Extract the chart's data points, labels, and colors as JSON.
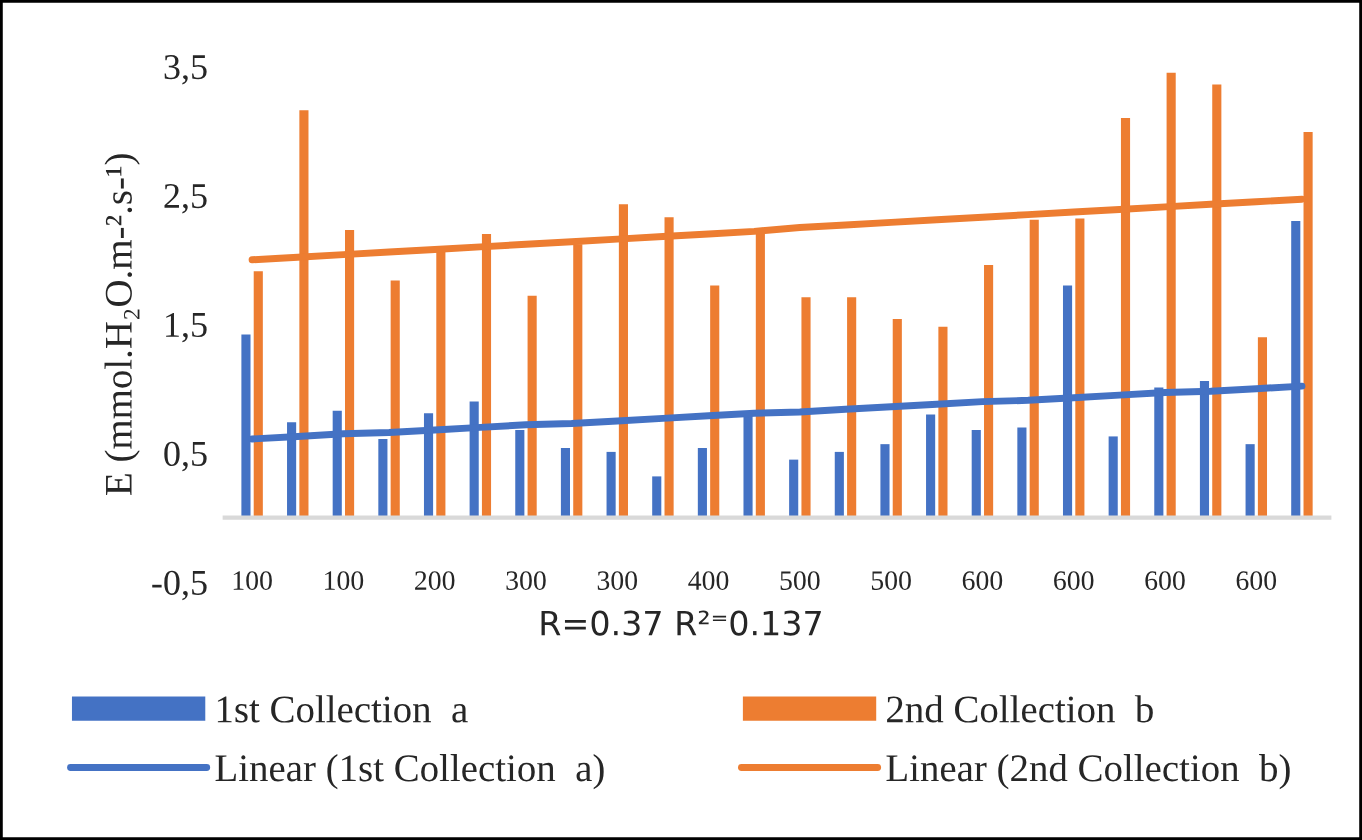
{
  "chart_data": {
    "type": "bar",
    "ylabel": "E (mmol.H₂O.m-².s-¹)",
    "annotations": [
      "R=0.37 R²⁼0.137"
    ],
    "categories": [
      "100",
      null,
      "100",
      null,
      "200",
      null,
      "300",
      null,
      "300",
      null,
      "400",
      null,
      "500",
      null,
      "500",
      null,
      "600",
      null,
      "600",
      null,
      "600",
      null,
      "600",
      null
    ],
    "series": [
      {
        "name": "1st Collection  a",
        "color": "#4472c4",
        "values": [
          1.42,
          0.74,
          0.83,
          0.61,
          0.81,
          0.9,
          0.68,
          0.54,
          0.51,
          0.32,
          0.54,
          0.82,
          0.45,
          0.51,
          0.57,
          0.8,
          0.68,
          0.7,
          1.8,
          0.63,
          1.01,
          1.06,
          0.57,
          2.3
        ]
      },
      {
        "name": "2nd Collection  b",
        "color": "#ed7d31",
        "values": [
          1.91,
          3.16,
          2.23,
          1.84,
          2.07,
          2.2,
          1.72,
          2.12,
          2.43,
          2.33,
          1.8,
          2.22,
          1.71,
          1.71,
          1.54,
          1.48,
          1.96,
          2.31,
          2.32,
          3.1,
          3.45,
          3.36,
          1.4,
          2.99
        ]
      },
      {
        "name": "Linear (1st Collection  a)",
        "type": "line",
        "color": "#4472c4",
        "values": [
          0.61,
          0.63,
          0.65,
          0.66,
          0.68,
          0.7,
          0.72,
          0.73,
          0.75,
          0.77,
          0.79,
          0.81,
          0.82,
          0.84,
          0.86,
          0.88,
          0.9,
          0.91,
          0.93,
          0.95,
          0.97,
          0.98,
          1.0,
          1.02
        ]
      },
      {
        "name": "Linear (2nd Collection  b)",
        "type": "line",
        "color": "#ed7d31",
        "values": [
          2.0,
          2.02,
          2.04,
          2.06,
          2.08,
          2.1,
          2.12,
          2.14,
          2.16,
          2.18,
          2.2,
          2.22,
          2.25,
          2.27,
          2.29,
          2.31,
          2.33,
          2.35,
          2.37,
          2.39,
          2.41,
          2.43,
          2.45,
          2.47
        ]
      }
    ],
    "ylim": [
      -0.5,
      3.5
    ],
    "yticks": [
      {
        "value": -0.5,
        "label": "-0,5"
      },
      {
        "value": 0.5,
        "label": "0,5"
      },
      {
        "value": 1.5,
        "label": "1,5"
      },
      {
        "value": 2.5,
        "label": "2,5"
      },
      {
        "value": 3.5,
        "label": "3,5"
      }
    ],
    "grid": false,
    "legend": "bottom"
  }
}
